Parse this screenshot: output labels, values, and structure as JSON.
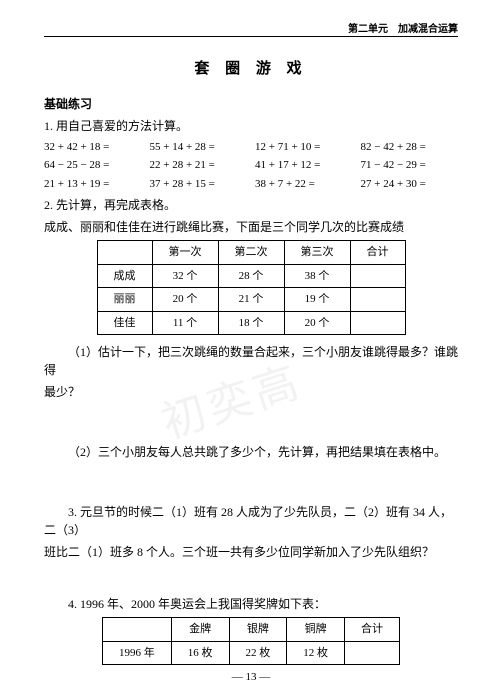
{
  "header": {
    "right": "第二单元　加减混合运算"
  },
  "title": "套 圈 游 戏",
  "section_heading": "基础练习",
  "q1": {
    "stem": "1. 用自己喜爱的方法计算。",
    "rows": [
      [
        "32 + 42 + 18 =",
        "55 + 14 + 28 =",
        "12 + 71 + 10 =",
        "82 − 42 + 28 ="
      ],
      [
        "64 − 25 − 28 =",
        "22 + 28 + 21 =",
        "41 + 17 + 12 =",
        "71 − 42 − 29 ="
      ],
      [
        "21 + 13 + 19 =",
        "37 + 28 + 15 =",
        "38 + 7 + 22 =",
        "27 + 24 + 30 ="
      ]
    ]
  },
  "q2": {
    "stem": "2. 先计算，再完成表格。",
    "desc": "成成、丽丽和佳佳在进行跳绳比赛，下面是三个同学几次的比赛成绩",
    "headers": [
      "",
      "第一次",
      "第二次",
      "第三次",
      "合计"
    ],
    "rows": [
      [
        "成成",
        "32 个",
        "28 个",
        "38 个",
        ""
      ],
      [
        "丽丽",
        "20 个",
        "21 个",
        "19 个",
        ""
      ],
      [
        "佳佳",
        "11 个",
        "18 个",
        "20 个",
        ""
      ]
    ],
    "sub1a": "（1）估计一下，把三次跳绳的数量合起来，三个小朋友谁跳得最多？谁跳得",
    "sub1b": "最少？",
    "sub2": "（2）三个小朋友每人总共跳了多少个，先计算，再把结果填在表格中。"
  },
  "q3": {
    "line1": "3. 元旦节的时候二（1）班有 28 人成为了少先队员，二（2）班有 34 人，二（3）",
    "line2": "班比二（1）班多 8 个人。三个班一共有多少位同学新加入了少先队组织？"
  },
  "q4": {
    "stem": "4. 1996 年、2000 年奥运会上我国得奖牌如下表：",
    "headers": [
      "",
      "金牌",
      "银牌",
      "铜牌",
      "合计"
    ],
    "rows": [
      [
        "1996 年",
        "16 枚",
        "22 枚",
        "12 枚",
        ""
      ]
    ]
  },
  "page_num": "— 13 —",
  "watermark": "初奕高"
}
